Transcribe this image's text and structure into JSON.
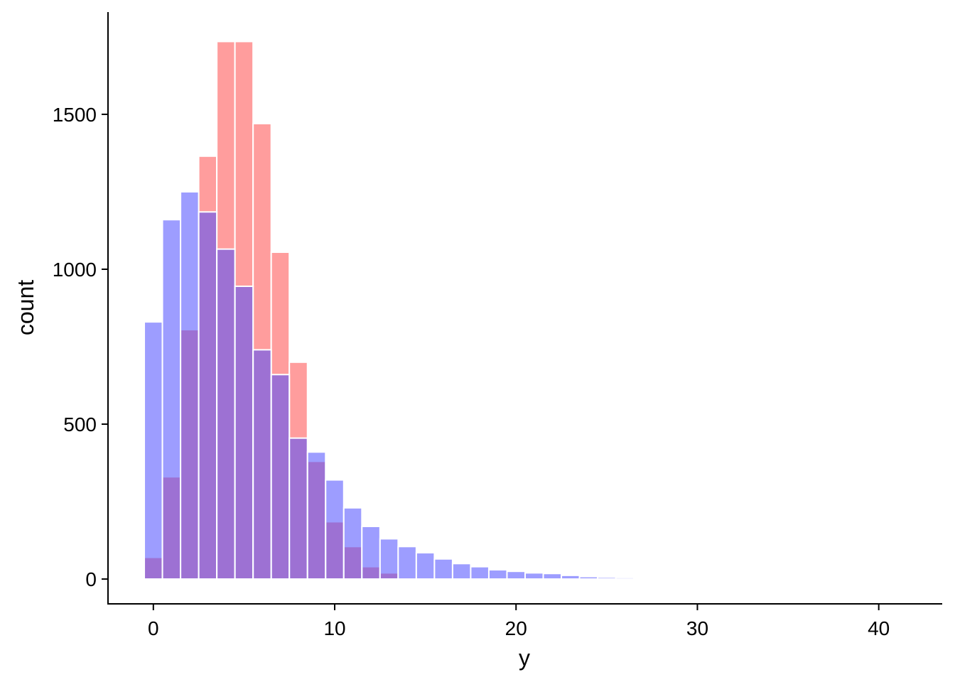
{
  "chart_data": {
    "type": "bar",
    "xlabel": "y",
    "ylabel": "count",
    "xlim": [
      -2.5,
      43.5
    ],
    "ylim": [
      -80,
      1830
    ],
    "xticks": [
      0,
      10,
      20,
      30,
      40
    ],
    "yticks": [
      0,
      500,
      1000,
      1500
    ],
    "grid": false,
    "legend": "none",
    "bin_width": 1,
    "x": [
      0,
      1,
      2,
      3,
      4,
      5,
      6,
      7,
      8,
      9,
      10,
      11,
      12,
      13,
      14,
      15,
      16,
      17,
      18,
      19,
      20,
      21,
      22,
      23,
      24,
      25,
      26,
      27,
      28,
      29,
      30,
      31,
      32,
      33,
      34,
      35,
      36,
      37,
      38,
      39,
      40,
      41
    ],
    "series": [
      {
        "color": "#ff4d4d",
        "opacity": 0.55,
        "values": [
          70,
          330,
          805,
          1365,
          1735,
          1735,
          1470,
          1055,
          700,
          380,
          185,
          105,
          40,
          20,
          5,
          2,
          1,
          0,
          0,
          0,
          0,
          0,
          0,
          0,
          0,
          0,
          0,
          0,
          0,
          0,
          0,
          0,
          0,
          0,
          0,
          0,
          0,
          0,
          0,
          0,
          0,
          0
        ]
      },
      {
        "color": "#4d4dff",
        "opacity": 0.55,
        "values": [
          830,
          1160,
          1250,
          1185,
          1065,
          945,
          740,
          660,
          455,
          410,
          320,
          230,
          170,
          130,
          105,
          85,
          65,
          50,
          40,
          30,
          25,
          20,
          18,
          12,
          8,
          6,
          5,
          4,
          1,
          0,
          3,
          2,
          0,
          0,
          0,
          0,
          2,
          0,
          0,
          2,
          0,
          2
        ]
      }
    ]
  }
}
